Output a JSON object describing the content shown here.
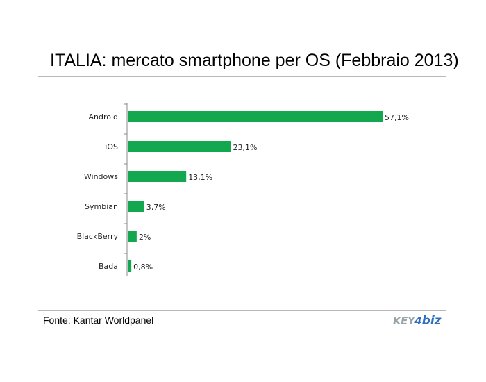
{
  "chart_data": {
    "type": "bar",
    "orientation": "horizontal",
    "title": "ITALIA: mercato smartphone per OS (Febbraio 2013)",
    "categories": [
      "Android",
      "iOS",
      "Windows",
      "Symbian",
      "BlackBerry",
      "Bada"
    ],
    "values": [
      57.1,
      23.1,
      13.1,
      3.7,
      2,
      0.8
    ],
    "value_labels": [
      "57,1%",
      "23,1%",
      "13,1%",
      "3,7%",
      "2%",
      "0,8%"
    ],
    "unit": "%",
    "xlim": [
      0,
      57.1
    ],
    "grid": false,
    "legend": "none",
    "bar_color": "#13a84f"
  },
  "footer": {
    "source": "Fonte: Kantar Worldpanel",
    "logo": {
      "part1": "KEY",
      "part2": "4",
      "part3": "biz"
    }
  }
}
